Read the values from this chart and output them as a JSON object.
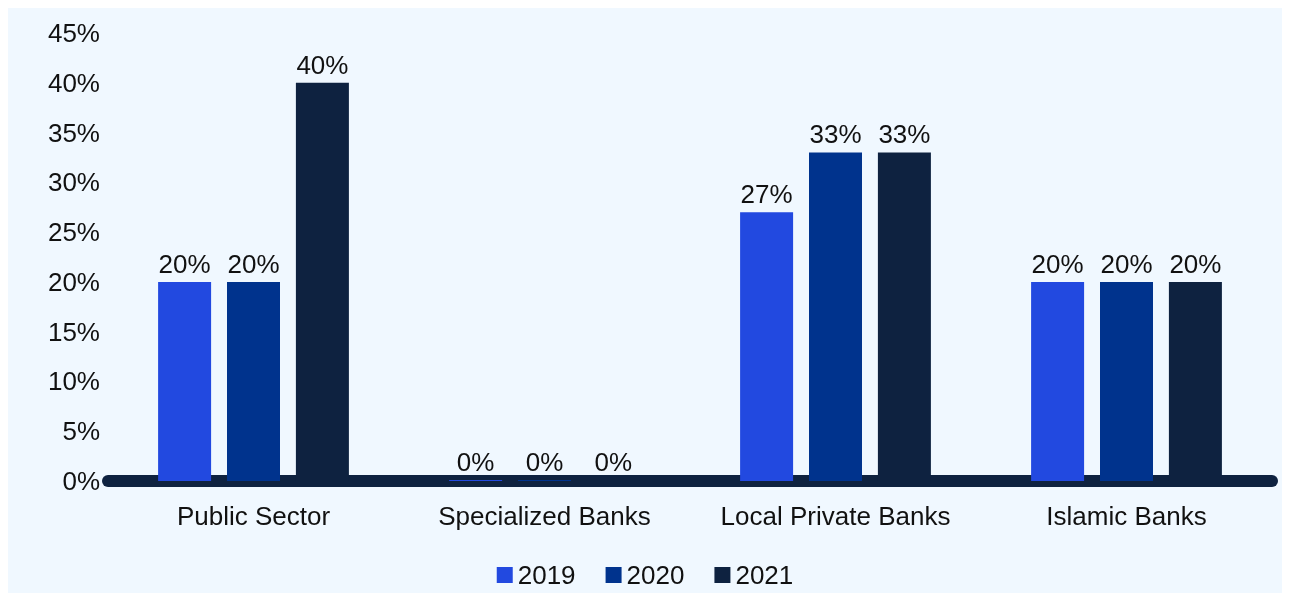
{
  "chart_data": {
    "type": "bar",
    "categories": [
      "Public Sector",
      "Specialized Banks",
      "Local Private Banks",
      "Islamic Banks"
    ],
    "series": [
      {
        "name": "2019",
        "color": "#2249e0",
        "values": [
          20,
          0,
          27,
          20
        ],
        "value_labels": [
          "20%",
          "0%",
          "27%",
          "20%"
        ]
      },
      {
        "name": "2020",
        "color": "#00338d",
        "values": [
          20,
          0,
          33,
          20
        ],
        "value_labels": [
          "20%",
          "0%",
          "33%",
          "20%"
        ]
      },
      {
        "name": "2021",
        "color": "#0e2240",
        "values": [
          40,
          0,
          33,
          20
        ],
        "value_labels": [
          "40%",
          "0%",
          "33%",
          "20%"
        ]
      }
    ],
    "ylim": [
      0,
      45
    ],
    "yticks": [
      {
        "value": 0,
        "label": "0%"
      },
      {
        "value": 5,
        "label": "5%"
      },
      {
        "value": 10,
        "label": "10%"
      },
      {
        "value": 15,
        "label": "15%"
      },
      {
        "value": 20,
        "label": "20%"
      },
      {
        "value": 25,
        "label": "25%"
      },
      {
        "value": 30,
        "label": "30%"
      },
      {
        "value": 35,
        "label": "35%"
      },
      {
        "value": 40,
        "label": "40%"
      },
      {
        "value": 45,
        "label": "45%"
      }
    ],
    "grid": false,
    "legend": "bottom"
  }
}
